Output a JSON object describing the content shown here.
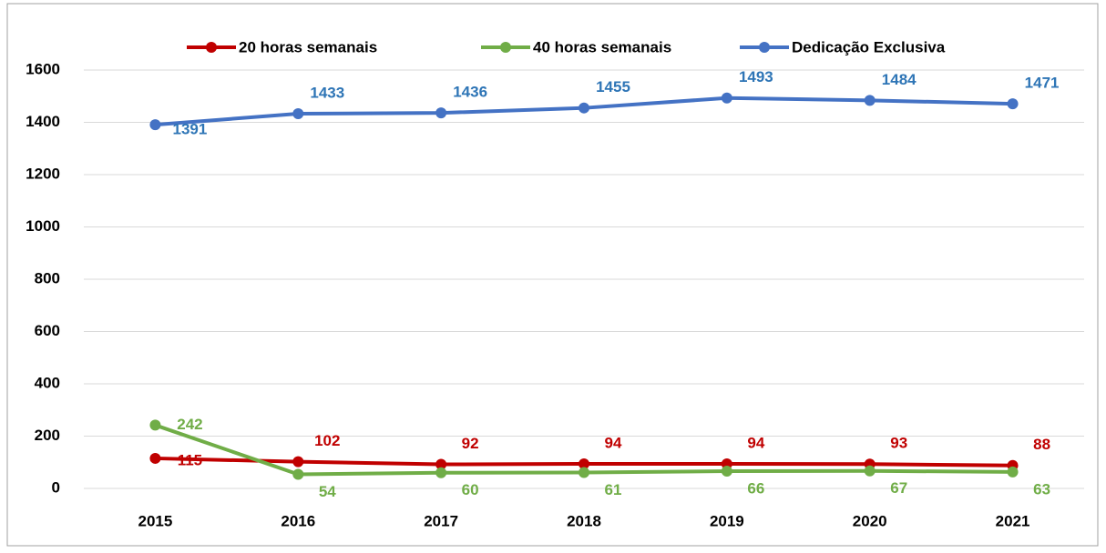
{
  "chart_data": {
    "type": "line",
    "categories": [
      "2015",
      "2016",
      "2017",
      "2018",
      "2019",
      "2020",
      "2021"
    ],
    "series": [
      {
        "name": "20 horas semanais",
        "color": "#c00000",
        "label_color": "#c00000",
        "values": [
          115,
          102,
          92,
          94,
          94,
          93,
          88
        ]
      },
      {
        "name": "40 horas semanais",
        "color": "#70ad47",
        "label_color": "#70ad47",
        "values": [
          242,
          54,
          60,
          61,
          66,
          67,
          63
        ]
      },
      {
        "name": "Dedicação Exclusiva",
        "color": "#4472c4",
        "label_color": "#2e75b6",
        "values": [
          1391,
          1433,
          1436,
          1455,
          1493,
          1484,
          1471
        ]
      }
    ],
    "ylim": [
      0,
      1600
    ],
    "yticks": [
      0,
      200,
      400,
      600,
      800,
      1000,
      1200,
      1400,
      1600
    ],
    "grid": true,
    "legend": "top"
  }
}
